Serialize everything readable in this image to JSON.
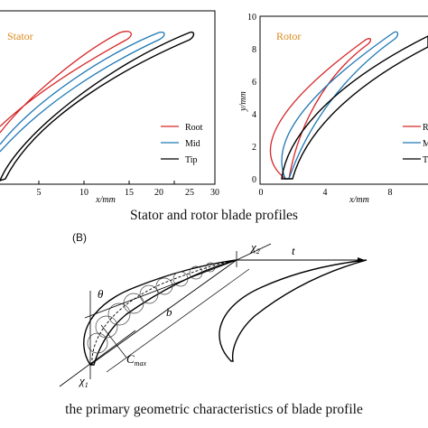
{
  "stator_panel": {
    "title": "Stator",
    "xlabel": "x/mm",
    "x_ticks": [
      "5",
      "10",
      "15",
      "20",
      "25",
      "30"
    ],
    "legend": [
      "Root",
      "Mid",
      "Tip"
    ]
  },
  "rotor_panel": {
    "title": "Rotor",
    "xlabel": "x/mm",
    "ylabel": "y/mm",
    "x_ticks": [
      "0",
      "4",
      "8"
    ],
    "y_ticks": [
      "0",
      "2",
      "4",
      "6",
      "8",
      "10"
    ],
    "legend": [
      "R",
      "M",
      "T"
    ]
  },
  "captions": {
    "top": "Stator and rotor blade profiles",
    "bottom": "the primary geometric characteristics of blade profile"
  },
  "geometry_panel": {
    "tag": "(B)",
    "labels": {
      "theta": "θ",
      "chi2": "χ",
      "chi2_sub": "2",
      "chi1": "χ",
      "chi1_sub": "1",
      "b": "b",
      "t": "t",
      "cmax": "C",
      "cmax_sub": "max"
    }
  },
  "colors": {
    "root": "#d62728",
    "mid": "#1f77b4",
    "tip": "#000000",
    "title_accent": "#d98a1a"
  }
}
